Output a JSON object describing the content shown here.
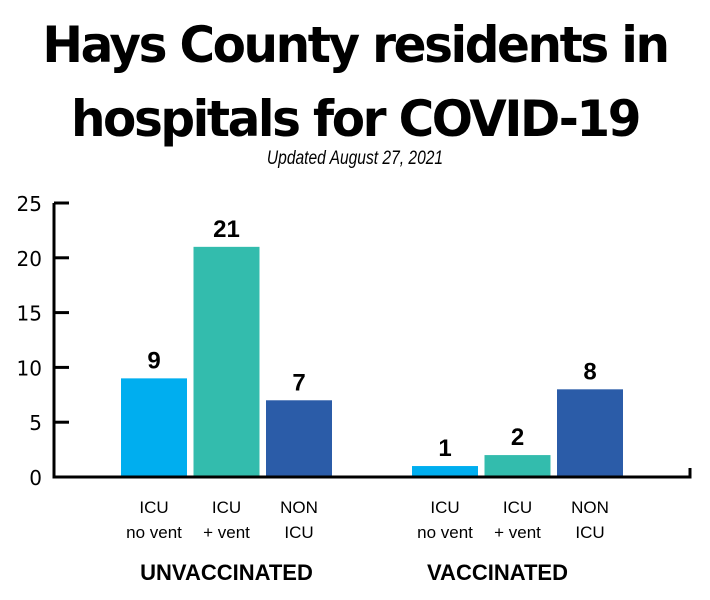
{
  "header": {
    "title_line1": "Hays County residents in",
    "title_line2": "hospitals for COVID-19",
    "subtitle": "Updated August 27, 2021"
  },
  "chart_data": {
    "type": "bar",
    "title": "Hays County residents in hospitals for COVID-19",
    "subtitle": "Updated August 27, 2021",
    "xlabel": "",
    "ylabel": "",
    "ylim": [
      0,
      25
    ],
    "yticks": [
      0,
      5,
      10,
      15,
      20,
      25
    ],
    "grid": false,
    "legend": "none",
    "groups": [
      {
        "name": "UNVACCINATED",
        "bars": [
          {
            "category": [
              "ICU",
              "no vent"
            ],
            "value": 9,
            "color": "#00aeef"
          },
          {
            "category": [
              "ICU",
              "+ vent"
            ],
            "value": 21,
            "color": "#33bcad"
          },
          {
            "category": [
              "NON",
              "ICU"
            ],
            "value": 7,
            "color": "#2b5ca8"
          }
        ]
      },
      {
        "name": "VACCINATED",
        "bars": [
          {
            "category": [
              "ICU",
              "no vent"
            ],
            "value": 1,
            "color": "#00aeef"
          },
          {
            "category": [
              "ICU",
              "+ vent"
            ],
            "value": 2,
            "color": "#33bcad"
          },
          {
            "category": [
              "NON",
              "ICU"
            ],
            "value": 8,
            "color": "#2b5ca8"
          }
        ]
      }
    ]
  }
}
